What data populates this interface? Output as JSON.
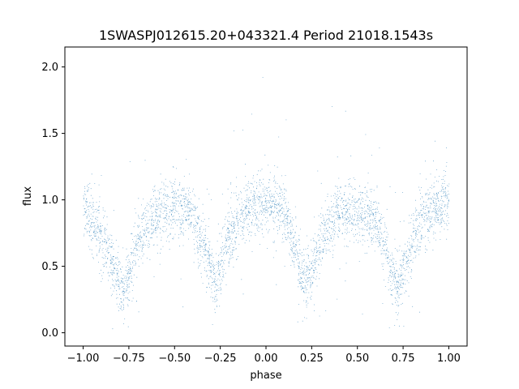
{
  "chart_data": {
    "type": "scatter",
    "title": "1SWASPJ012615.20+043321.4 Period 21018.1543s",
    "xlabel": "phase",
    "ylabel": "flux",
    "xlim": [
      -1.1,
      1.1
    ],
    "ylim": [
      -0.1,
      2.15
    ],
    "xticks": [
      -1.0,
      -0.75,
      -0.5,
      -0.25,
      0.0,
      0.25,
      0.5,
      0.75,
      1.0
    ],
    "xtick_labels": [
      "−1.00",
      "−0.75",
      "−0.50",
      "−0.25",
      "0.00",
      "0.25",
      "0.50",
      "0.75",
      "1.00"
    ],
    "yticks": [
      0.0,
      0.5,
      1.0,
      1.5,
      2.0
    ],
    "ytick_labels": [
      "0.0",
      "0.5",
      "1.0",
      "1.5",
      "2.0"
    ],
    "grid": false,
    "point_color": "#1f77b4",
    "light_curve": {
      "description": "Eclipsing-binary style phase-folded light curve; sampled envelope (x=phase, y=median flux)",
      "x": [
        -1.0,
        -0.9,
        -0.8,
        -0.78,
        -0.7,
        -0.6,
        -0.5,
        -0.4,
        -0.3,
        -0.28,
        -0.2,
        -0.1,
        0.0,
        0.1,
        0.2,
        0.22,
        0.3,
        0.4,
        0.5,
        0.6,
        0.7,
        0.72,
        0.8,
        0.9,
        1.0
      ],
      "y": [
        0.95,
        0.7,
        0.35,
        0.3,
        0.7,
        0.9,
        0.95,
        0.88,
        0.45,
        0.35,
        0.75,
        0.92,
        1.0,
        0.9,
        0.42,
        0.33,
        0.72,
        0.9,
        0.92,
        0.85,
        0.4,
        0.32,
        0.72,
        0.92,
        0.98
      ]
    }
  }
}
